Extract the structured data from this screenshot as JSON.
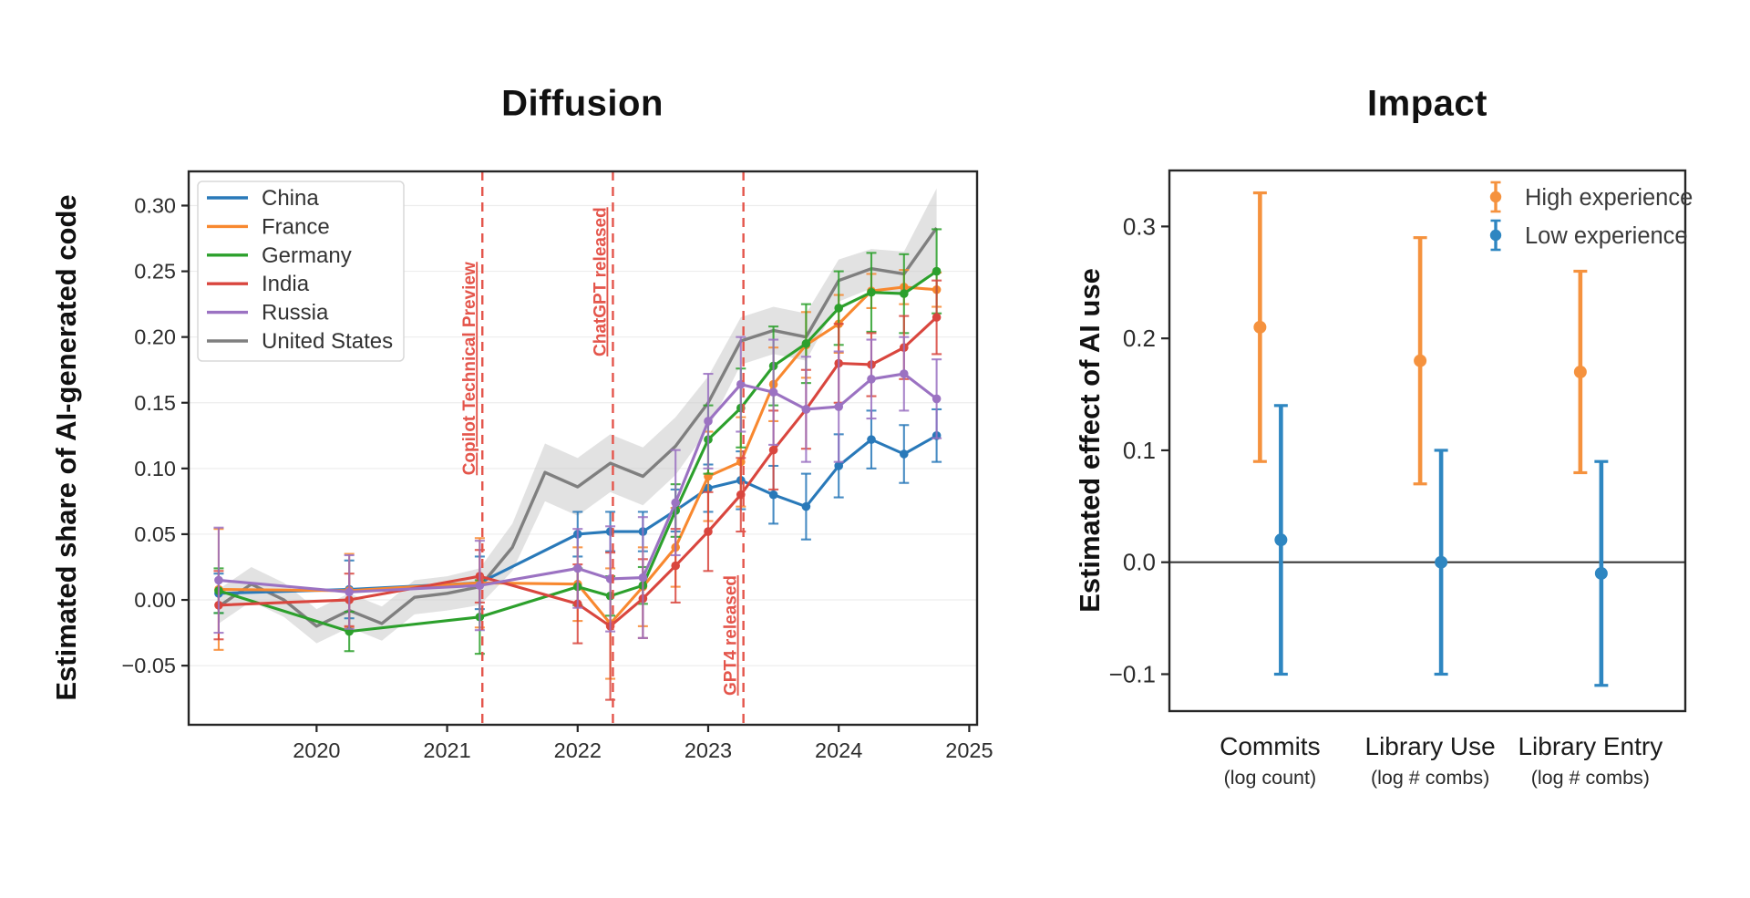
{
  "page": {
    "background": "#ffffff"
  },
  "chart_data": [
    {
      "type": "line",
      "title": "Diffusion",
      "ylabel": "Estimated share of AI-generated code",
      "xlim": [
        2019.02,
        2025.06
      ],
      "ylim": [
        -0.095,
        0.326
      ],
      "xticks": [
        2020,
        2021,
        2022,
        2023,
        2024,
        2025
      ],
      "yticks": [
        -0.05,
        0.0,
        0.05,
        0.1,
        0.15,
        0.2,
        0.25,
        0.3
      ],
      "ytick_decimals": 2,
      "grid": true,
      "grid_color": "#ededed",
      "axis_color": "#262626",
      "tick_label_color": "#2d2d2d",
      "legend_position": "upper left",
      "event_color": "#e4554b",
      "events": [
        {
          "label": "Copilot Technical Preview",
          "x": 2021.27,
          "label_center_value": 0.176
        },
        {
          "label": "ChatGPT released",
          "x": 2022.27,
          "label_center_value": 0.242
        },
        {
          "label": "GPT4 released",
          "x": 2023.27,
          "label_center_value": -0.027
        }
      ],
      "us_band": {
        "name": "United States",
        "color": "#7f7f7f",
        "band_color": "#cbcbcb",
        "x": [
          2019.25,
          2019.5,
          2019.75,
          2020.0,
          2020.25,
          2020.5,
          2020.75,
          2021.0,
          2021.25,
          2021.5,
          2021.75,
          2022.0,
          2022.25,
          2022.5,
          2022.75,
          2023.0,
          2023.25,
          2023.5,
          2023.75,
          2024.0,
          2024.25,
          2024.5,
          2024.75
        ],
        "values": [
          -0.005,
          0.012,
          0.0,
          -0.02,
          -0.008,
          -0.018,
          0.002,
          0.005,
          0.01,
          0.04,
          0.097,
          0.086,
          0.104,
          0.094,
          0.117,
          0.15,
          0.197,
          0.205,
          0.2,
          0.243,
          0.252,
          0.248,
          0.283
        ],
        "band_half": [
          0.013,
          0.013,
          0.013,
          0.013,
          0.013,
          0.013,
          0.013,
          0.013,
          0.014,
          0.018,
          0.022,
          0.022,
          0.022,
          0.022,
          0.022,
          0.02,
          0.018,
          0.018,
          0.018,
          0.016,
          0.015,
          0.017,
          0.03
        ]
      },
      "x": [
        2019.25,
        2020.25,
        2021.25,
        2022.0,
        2022.25,
        2022.5,
        2022.75,
        2023.0,
        2023.25,
        2023.5,
        2023.75,
        2024.0,
        2024.25,
        2024.5,
        2024.75
      ],
      "series": [
        {
          "name": "China",
          "color": "#2979b9",
          "values": [
            0.005,
            0.008,
            0.013,
            0.05,
            0.052,
            0.052,
            0.068,
            0.085,
            0.091,
            0.08,
            0.071,
            0.102,
            0.122,
            0.111,
            0.125
          ],
          "err": [
            0.015,
            0.022,
            0.02,
            0.017,
            0.015,
            0.015,
            0.016,
            0.018,
            0.022,
            0.022,
            0.025,
            0.024,
            0.022,
            0.022,
            0.02
          ]
        },
        {
          "name": "France",
          "color": "#f8882f",
          "values": [
            0.008,
            0.007,
            0.013,
            0.012,
            -0.018,
            0.01,
            0.04,
            0.094,
            0.105,
            0.164,
            0.194,
            0.21,
            0.235,
            0.238,
            0.236
          ],
          "err": [
            0.046,
            0.028,
            0.034,
            0.028,
            0.042,
            0.03,
            0.03,
            0.034,
            0.034,
            0.028,
            0.025,
            0.022,
            0.013,
            0.013,
            0.013
          ]
        },
        {
          "name": "Germany",
          "color": "#2ca02c",
          "values": [
            0.007,
            -0.024,
            -0.013,
            0.01,
            0.003,
            0.011,
            0.068,
            0.122,
            0.146,
            0.178,
            0.195,
            0.222,
            0.234,
            0.233,
            0.25
          ],
          "err": [
            0.017,
            0.015,
            0.028,
            0.014,
            0.015,
            0.014,
            0.02,
            0.026,
            0.03,
            0.03,
            0.03,
            0.028,
            0.03,
            0.03,
            0.032
          ]
        },
        {
          "name": "India",
          "color": "#d9463e",
          "values": [
            -0.004,
            0.0,
            0.018,
            -0.003,
            -0.02,
            0.001,
            0.026,
            0.052,
            0.08,
            0.114,
            0.145,
            0.18,
            0.179,
            0.192,
            0.215
          ],
          "err": [
            0.026,
            0.02,
            0.02,
            0.03,
            0.056,
            0.03,
            0.028,
            0.03,
            0.028,
            0.03,
            0.03,
            0.03,
            0.024,
            0.024,
            0.028
          ]
        },
        {
          "name": "Russia",
          "color": "#9b72c2",
          "values": [
            0.015,
            0.006,
            0.011,
            0.024,
            0.016,
            0.017,
            0.074,
            0.136,
            0.164,
            0.158,
            0.145,
            0.147,
            0.168,
            0.172,
            0.153
          ],
          "err": [
            0.04,
            0.028,
            0.034,
            0.03,
            0.04,
            0.046,
            0.04,
            0.036,
            0.036,
            0.04,
            0.04,
            0.042,
            0.03,
            0.028,
            0.03
          ]
        }
      ],
      "legend_entries": [
        "China",
        "France",
        "Germany",
        "India",
        "Russia",
        "United States"
      ]
    },
    {
      "type": "pointrange",
      "title": "Impact",
      "ylabel": "Estimated effect of AI use",
      "ylim": [
        -0.133,
        0.35
      ],
      "yticks": [
        0.3,
        0.2,
        0.1,
        0.0,
        -0.1
      ],
      "ytick_decimals": 1,
      "grid": false,
      "zero_line": true,
      "axis_color": "#262626",
      "tick_label_color": "#2d2d2d",
      "legend_position": "upper right",
      "categories": [
        {
          "label": "Commits",
          "sub": "(log count)"
        },
        {
          "label": "Library Use",
          "sub": "(log # combs)"
        },
        {
          "label": "Library Entry",
          "sub": "(log # combs)"
        }
      ],
      "series": [
        {
          "name": "High experience",
          "color": "#f5923e",
          "values": [
            0.21,
            0.18,
            0.17
          ],
          "lo": [
            0.09,
            0.07,
            0.08
          ],
          "hi": [
            0.33,
            0.29,
            0.26
          ]
        },
        {
          "name": "Low experience",
          "color": "#2e86c1",
          "values": [
            0.02,
            0.0,
            -0.01
          ],
          "lo": [
            -0.1,
            -0.1,
            -0.11
          ],
          "hi": [
            0.14,
            0.1,
            0.09
          ]
        }
      ]
    }
  ]
}
